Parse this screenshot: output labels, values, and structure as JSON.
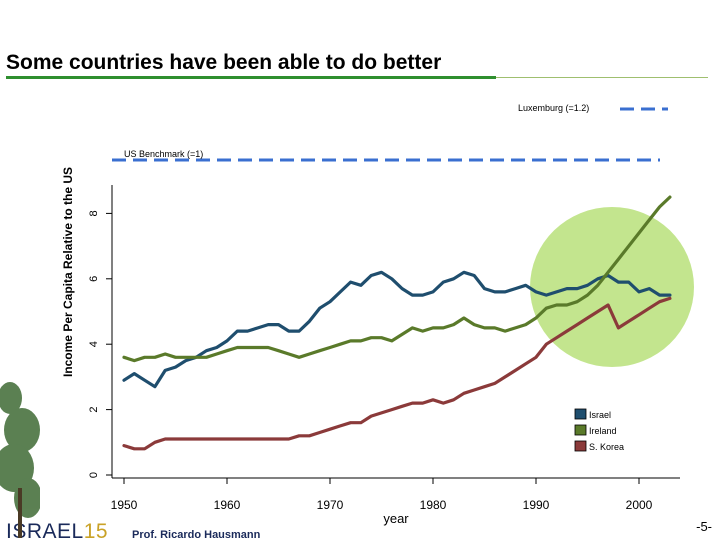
{
  "slide": {
    "title": "Some countries have been able to do better",
    "logo_text": "ISRAEL",
    "logo_number": "15",
    "author": "Prof. Ricardo Hausmann",
    "page_number": "-5-"
  },
  "colors": {
    "israel": "#1f4e6e",
    "ireland": "#5a7a2a",
    "s_korea": "#8b3a3a",
    "benchmark": "#3a6fd0",
    "highlight": "#b9e07a",
    "title_rule": "#2f8f2f"
  },
  "chart_data": {
    "type": "line",
    "title": "",
    "xlabel": "year",
    "ylabel": "Income Per Capita Relative to the US",
    "xlim": [
      1950,
      2003
    ],
    "ylim": [
      0,
      0.9
    ],
    "x_ticks": [
      1950,
      1960,
      1970,
      1980,
      1990,
      2000
    ],
    "x_tick_labels": [
      "1950",
      "1960",
      "1970",
      "1980",
      "1990",
      "2000"
    ],
    "y_ticks": [
      0,
      0.2,
      0.4,
      0.6,
      0.8
    ],
    "y_tick_labels": [
      "0",
      "2",
      "4",
      "6",
      "8"
    ],
    "reference_lines": [
      {
        "label": "US Benchmark (=1)",
        "value": 1.0
      },
      {
        "label": "Luxemburg (=1.2)",
        "value": 1.2
      }
    ],
    "legend_position": "bottom-right",
    "x": [
      1950,
      1951,
      1952,
      1953,
      1954,
      1955,
      1956,
      1957,
      1958,
      1959,
      1960,
      1961,
      1962,
      1963,
      1964,
      1965,
      1966,
      1967,
      1968,
      1969,
      1970,
      1971,
      1972,
      1973,
      1974,
      1975,
      1976,
      1977,
      1978,
      1979,
      1980,
      1981,
      1982,
      1983,
      1984,
      1985,
      1986,
      1987,
      1988,
      1989,
      1990,
      1991,
      1992,
      1993,
      1994,
      1995,
      1996,
      1997,
      1998,
      1999,
      2000,
      2001,
      2002,
      2003
    ],
    "series": [
      {
        "name": "Israel",
        "values": [
          0.29,
          0.31,
          0.29,
          0.27,
          0.32,
          0.33,
          0.35,
          0.36,
          0.38,
          0.39,
          0.41,
          0.44,
          0.44,
          0.45,
          0.46,
          0.46,
          0.44,
          0.44,
          0.47,
          0.51,
          0.53,
          0.56,
          0.59,
          0.58,
          0.61,
          0.62,
          0.6,
          0.57,
          0.55,
          0.55,
          0.56,
          0.59,
          0.6,
          0.62,
          0.61,
          0.57,
          0.56,
          0.56,
          0.57,
          0.58,
          0.56,
          0.55,
          0.56,
          0.57,
          0.57,
          0.58,
          0.6,
          0.61,
          0.59,
          0.59,
          0.56,
          0.57,
          0.55,
          0.55
        ]
      },
      {
        "name": "Ireland",
        "values": [
          0.36,
          0.35,
          0.36,
          0.36,
          0.37,
          0.36,
          0.36,
          0.36,
          0.36,
          0.37,
          0.38,
          0.39,
          0.39,
          0.39,
          0.39,
          0.38,
          0.37,
          0.36,
          0.37,
          0.38,
          0.39,
          0.4,
          0.41,
          0.41,
          0.42,
          0.42,
          0.41,
          0.43,
          0.45,
          0.44,
          0.45,
          0.45,
          0.46,
          0.48,
          0.46,
          0.45,
          0.45,
          0.44,
          0.45,
          0.46,
          0.48,
          0.51,
          0.52,
          0.52,
          0.53,
          0.55,
          0.58,
          0.62,
          0.66,
          0.7,
          0.74,
          0.78,
          0.82,
          0.85
        ]
      },
      {
        "name": "S. Korea",
        "values": [
          0.09,
          0.08,
          0.08,
          0.1,
          0.11,
          0.11,
          0.11,
          0.11,
          0.11,
          0.11,
          0.11,
          0.11,
          0.11,
          0.11,
          0.11,
          0.11,
          0.11,
          0.12,
          0.12,
          0.13,
          0.14,
          0.15,
          0.16,
          0.16,
          0.18,
          0.19,
          0.2,
          0.21,
          0.22,
          0.22,
          0.23,
          0.22,
          0.23,
          0.25,
          0.26,
          0.27,
          0.28,
          0.3,
          0.32,
          0.34,
          0.36,
          0.4,
          0.42,
          0.44,
          0.46,
          0.48,
          0.5,
          0.52,
          0.45,
          0.47,
          0.49,
          0.51,
          0.53,
          0.54
        ]
      }
    ]
  }
}
